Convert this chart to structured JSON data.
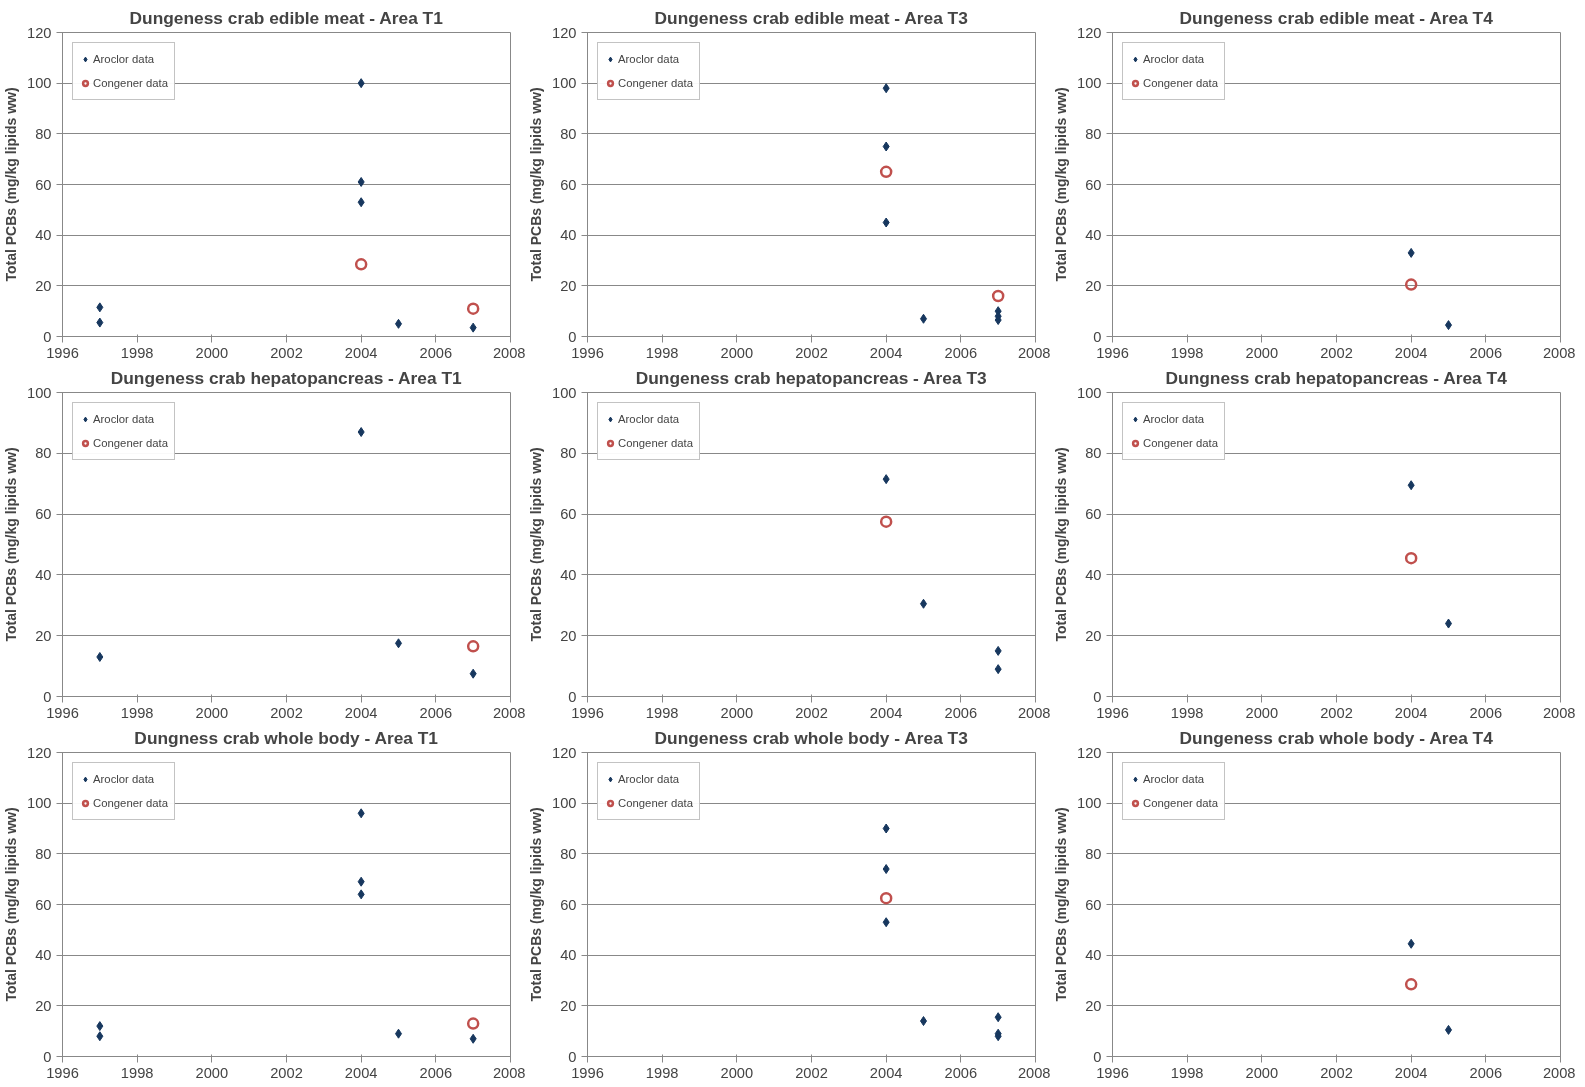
{
  "chart_data": [
    {
      "type": "scatter",
      "title": "Dungeness crab edible meat - Area T1",
      "ylabel": "Total PCBs (mg/kg lipids ww)",
      "xlim": [
        1996,
        2008
      ],
      "xticks": [
        1996,
        1998,
        2000,
        2002,
        2004,
        2006,
        2008
      ],
      "ylim": [
        0,
        120
      ],
      "yticks": [
        0,
        20,
        40,
        60,
        80,
        100,
        120
      ],
      "grid": "y",
      "legend": "top left",
      "series": [
        {
          "name": "Aroclor data",
          "color": "#17375e",
          "marker": "diamond",
          "x": [
            1997,
            1997,
            2004,
            2004,
            2004,
            2005,
            2007
          ],
          "values": [
            11.5,
            5.5,
            100,
            61,
            53,
            5,
            3.5
          ]
        },
        {
          "name": "Congener data",
          "color": "#c0504d",
          "marker": "circle",
          "x": [
            2004,
            2007
          ],
          "values": [
            28.5,
            11
          ]
        }
      ]
    },
    {
      "type": "scatter",
      "title": "Dungeness crab edible meat - Area T3",
      "ylabel": "Total PCBs (mg/kg lipids ww)",
      "xlim": [
        1996,
        2008
      ],
      "xticks": [
        1996,
        1998,
        2000,
        2002,
        2004,
        2006,
        2008
      ],
      "ylim": [
        0,
        120
      ],
      "yticks": [
        0,
        20,
        40,
        60,
        80,
        100,
        120
      ],
      "grid": "y",
      "legend": "top left",
      "series": [
        {
          "name": "Aroclor data",
          "color": "#17375e",
          "marker": "diamond",
          "x": [
            2004,
            2004,
            2004,
            2005,
            2007,
            2007,
            2007
          ],
          "values": [
            98,
            75,
            45,
            7,
            10,
            8,
            6.5
          ]
        },
        {
          "name": "Congener data",
          "color": "#c0504d",
          "marker": "circle",
          "x": [
            2004,
            2007
          ],
          "values": [
            65,
            16
          ]
        }
      ]
    },
    {
      "type": "scatter",
      "title": "Dungeness crab edible meat - Area T4",
      "ylabel": "Total PCBs (mg/kg lipids ww)",
      "xlim": [
        1996,
        2008
      ],
      "xticks": [
        1996,
        1998,
        2000,
        2002,
        2004,
        2006,
        2008
      ],
      "ylim": [
        0,
        120
      ],
      "yticks": [
        0,
        20,
        40,
        60,
        80,
        100,
        120
      ],
      "grid": "y",
      "legend": "top left",
      "series": [
        {
          "name": "Aroclor data",
          "color": "#17375e",
          "marker": "diamond",
          "x": [
            2004,
            2005
          ],
          "values": [
            33,
            4.5
          ]
        },
        {
          "name": "Congener data",
          "color": "#c0504d",
          "marker": "circle",
          "x": [
            2004
          ],
          "values": [
            20.5
          ]
        }
      ]
    },
    {
      "type": "scatter",
      "title": "Dungeness crab hepatopancreas - Area T1",
      "ylabel": "Total PCBs (mg/kg lipids ww)",
      "xlim": [
        1996,
        2008
      ],
      "xticks": [
        1996,
        1998,
        2000,
        2002,
        2004,
        2006,
        2008
      ],
      "ylim": [
        0,
        100
      ],
      "yticks": [
        0,
        20,
        40,
        60,
        80,
        100
      ],
      "grid": "y",
      "legend": "top left",
      "series": [
        {
          "name": "Aroclor data",
          "color": "#17375e",
          "marker": "diamond",
          "x": [
            1997,
            2004,
            2005,
            2007
          ],
          "values": [
            13,
            87,
            17.5,
            7.5
          ]
        },
        {
          "name": "Congener data",
          "color": "#c0504d",
          "marker": "circle",
          "x": [
            2007
          ],
          "values": [
            16.5
          ]
        }
      ]
    },
    {
      "type": "scatter",
      "title": "Dungeness crab hepatopancreas - Area T3",
      "ylabel": "Total PCBs (mg/kg lipids ww)",
      "xlim": [
        1996,
        2008
      ],
      "xticks": [
        1996,
        1998,
        2000,
        2002,
        2004,
        2006,
        2008
      ],
      "ylim": [
        0,
        100
      ],
      "yticks": [
        0,
        20,
        40,
        60,
        80,
        100
      ],
      "grid": "y",
      "legend": "top left",
      "series": [
        {
          "name": "Aroclor data",
          "color": "#17375e",
          "marker": "diamond",
          "x": [
            2004,
            2005,
            2007,
            2007
          ],
          "values": [
            71.5,
            30.5,
            15,
            9
          ]
        },
        {
          "name": "Congener data",
          "color": "#c0504d",
          "marker": "circle",
          "x": [
            2004
          ],
          "values": [
            57.5
          ]
        }
      ]
    },
    {
      "type": "scatter",
      "title": "Dungness crab hepatopancreas - Area T4",
      "ylabel": "Total PCBs (mg/kg lipids ww)",
      "xlim": [
        1996,
        2008
      ],
      "xticks": [
        1996,
        1998,
        2000,
        2002,
        2004,
        2006,
        2008
      ],
      "ylim": [
        0,
        100
      ],
      "yticks": [
        0,
        20,
        40,
        60,
        80,
        100
      ],
      "grid": "y",
      "legend": "top left",
      "series": [
        {
          "name": "Aroclor data",
          "color": "#17375e",
          "marker": "diamond",
          "x": [
            2004,
            2005
          ],
          "values": [
            69.5,
            24
          ]
        },
        {
          "name": "Congener data",
          "color": "#c0504d",
          "marker": "circle",
          "x": [
            2004
          ],
          "values": [
            45.5
          ]
        }
      ]
    },
    {
      "type": "scatter",
      "title": "Dungness crab whole body - Area T1",
      "ylabel": "Total PCBs (mg/kg lipids ww)",
      "xlim": [
        1996,
        2008
      ],
      "xticks": [
        1996,
        1998,
        2000,
        2002,
        2004,
        2006,
        2008
      ],
      "ylim": [
        0,
        120
      ],
      "yticks": [
        0,
        20,
        40,
        60,
        80,
        100,
        120
      ],
      "grid": "y",
      "legend": "top left",
      "series": [
        {
          "name": "Aroclor data",
          "color": "#17375e",
          "marker": "diamond",
          "x": [
            1997,
            1997,
            2004,
            2004,
            2004,
            2005,
            2007
          ],
          "values": [
            12,
            8,
            96,
            69,
            64,
            9,
            7
          ]
        },
        {
          "name": "Congener data",
          "color": "#c0504d",
          "marker": "circle",
          "x": [
            2007
          ],
          "values": [
            13
          ]
        }
      ]
    },
    {
      "type": "scatter",
      "title": "Dungeness crab whole body - Area T3",
      "ylabel": "Total PCBs (mg/kg lipids ww)",
      "xlim": [
        1996,
        2008
      ],
      "xticks": [
        1996,
        1998,
        2000,
        2002,
        2004,
        2006,
        2008
      ],
      "ylim": [
        0,
        120
      ],
      "yticks": [
        0,
        20,
        40,
        60,
        80,
        100,
        120
      ],
      "grid": "y",
      "legend": "top left",
      "series": [
        {
          "name": "Aroclor data",
          "color": "#17375e",
          "marker": "diamond",
          "x": [
            2004,
            2004,
            2004,
            2005,
            2007,
            2007,
            2007
          ],
          "values": [
            90,
            74,
            53,
            14,
            15.5,
            9,
            8
          ]
        },
        {
          "name": "Congener data",
          "color": "#c0504d",
          "marker": "circle",
          "x": [
            2004
          ],
          "values": [
            62.5
          ]
        }
      ]
    },
    {
      "type": "scatter",
      "title": "Dungeness crab whole body - Area T4",
      "ylabel": "Total PCBs (mg/kg lipids ww)",
      "xlim": [
        1996,
        2008
      ],
      "xticks": [
        1996,
        1998,
        2000,
        2002,
        2004,
        2006,
        2008
      ],
      "ylim": [
        0,
        120
      ],
      "yticks": [
        0,
        20,
        40,
        60,
        80,
        100,
        120
      ],
      "grid": "y",
      "legend": "top left",
      "series": [
        {
          "name": "Aroclor data",
          "color": "#17375e",
          "marker": "diamond",
          "x": [
            2004,
            2005
          ],
          "values": [
            44.5,
            10.5
          ]
        },
        {
          "name": "Congener data",
          "color": "#c0504d",
          "marker": "circle",
          "x": [
            2004
          ],
          "values": [
            28.5
          ]
        }
      ]
    }
  ]
}
